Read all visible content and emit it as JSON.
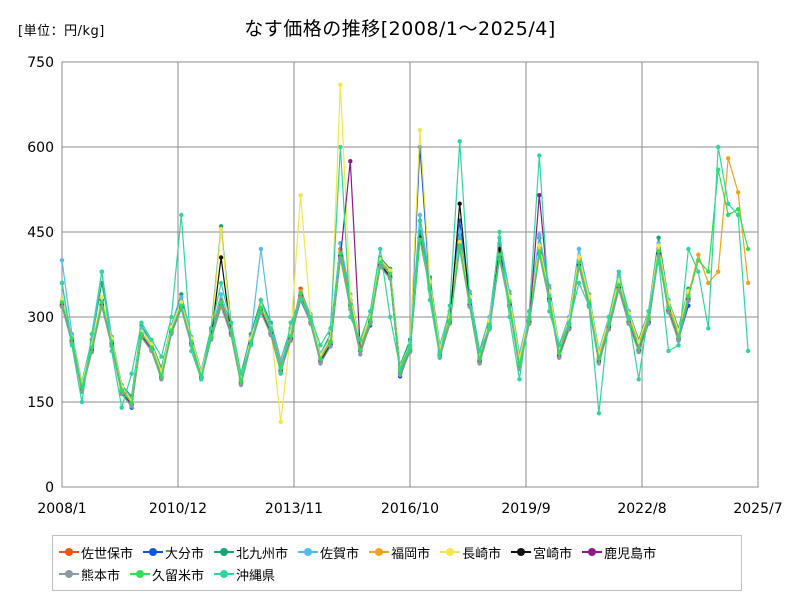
{
  "chart_data": {
    "type": "line",
    "title": "なす価格の推移[2008/1～2025/4]",
    "unit_label": "[単位：円/kg]",
    "xlabel": "",
    "ylabel": "",
    "ylim": [
      0,
      750
    ],
    "yticks": [
      "0",
      "150",
      "300",
      "450",
      "600",
      "750"
    ],
    "xlim": [
      "2008/1",
      "2025/7"
    ],
    "xticks": [
      "2008/1",
      "2010/12",
      "2013/11",
      "2016/10",
      "2019/9",
      "2022/8",
      "2025/7"
    ],
    "grid": true,
    "legend_position": "bottom",
    "x": [
      "2008/1",
      "2008/4",
      "2008/7",
      "2008/10",
      "2009/1",
      "2009/4",
      "2009/7",
      "2009/10",
      "2010/1",
      "2010/4",
      "2010/7",
      "2010/10",
      "2011/1",
      "2011/4",
      "2011/7",
      "2011/10",
      "2012/1",
      "2012/4",
      "2012/7",
      "2012/10",
      "2013/1",
      "2013/4",
      "2013/7",
      "2013/10",
      "2014/1",
      "2014/4",
      "2014/7",
      "2014/10",
      "2015/1",
      "2015/4",
      "2015/7",
      "2015/10",
      "2016/1",
      "2016/4",
      "2016/7",
      "2016/10",
      "2017/1",
      "2017/4",
      "2017/7",
      "2017/10",
      "2018/1",
      "2018/4",
      "2018/7",
      "2018/10",
      "2019/1",
      "2019/4",
      "2019/7",
      "2019/10",
      "2020/1",
      "2020/4",
      "2020/7",
      "2020/10",
      "2021/1",
      "2021/4",
      "2021/7",
      "2021/10",
      "2022/1",
      "2022/4",
      "2022/7",
      "2022/10",
      "2023/1",
      "2023/4",
      "2023/7",
      "2023/10",
      "2024/1",
      "2024/4",
      "2024/7",
      "2024/10",
      "2025/1",
      "2025/4"
    ],
    "series": [
      {
        "name": "佐世保市",
        "color": "#ee5511",
        "values": [
          330,
          265,
          180,
          250,
          320,
          260,
          175,
          150,
          270,
          250,
          200,
          280,
          320,
          260,
          200,
          270,
          330,
          280,
          190,
          260,
          320,
          280,
          215,
          270,
          350,
          300,
          230,
          260,
          420,
          330,
          250,
          300,
          400,
          380,
          210,
          250,
          470,
          360,
          240,
          300,
          430,
          330,
          230,
          290,
          410,
          330,
          220,
          300,
          420,
          340,
          240,
          290,
          400,
          330,
          230,
          290,
          360,
          300,
          250,
          300,
          420,
          320,
          270,
          340,
          null,
          null,
          null,
          null,
          null,
          null
        ]
      },
      {
        "name": "大分市",
        "color": "#1155dd",
        "values": [
          320,
          260,
          175,
          245,
          330,
          255,
          170,
          140,
          275,
          245,
          195,
          275,
          325,
          255,
          195,
          265,
          320,
          275,
          185,
          255,
          315,
          270,
          205,
          265,
          330,
          290,
          225,
          255,
          410,
          320,
          240,
          285,
          395,
          370,
          195,
          240,
          600,
          350,
          235,
          290,
          470,
          330,
          225,
          285,
          425,
          320,
          215,
          290,
          420,
          335,
          230,
          280,
          390,
          320,
          225,
          280,
          350,
          290,
          240,
          290,
          410,
          310,
          260,
          320,
          null,
          null,
          null,
          null,
          null,
          null
        ]
      },
      {
        "name": "北九州市",
        "color": "#1aa673",
        "values": [
          360,
          255,
          185,
          260,
          360,
          265,
          180,
          160,
          285,
          255,
          210,
          285,
          340,
          265,
          205,
          280,
          460,
          290,
          200,
          270,
          330,
          290,
          225,
          280,
          340,
          300,
          235,
          270,
          430,
          340,
          255,
          300,
          405,
          385,
          215,
          260,
          450,
          370,
          250,
          310,
          440,
          340,
          240,
          300,
          430,
          340,
          230,
          310,
          440,
          350,
          250,
          300,
          420,
          340,
          240,
          300,
          370,
          310,
          260,
          310,
          440,
          330,
          280,
          350,
          null,
          null,
          null,
          null,
          null,
          null
        ]
      },
      {
        "name": "佐賀市",
        "color": "#55bbee",
        "values": [
          400,
          270,
          185,
          255,
          380,
          265,
          180,
          155,
          280,
          255,
          205,
          285,
          335,
          265,
          205,
          275,
          340,
          285,
          195,
          265,
          420,
          285,
          225,
          275,
          345,
          305,
          235,
          265,
          430,
          340,
          255,
          295,
          390,
          380,
          210,
          255,
          480,
          365,
          250,
          310,
          450,
          345,
          235,
          300,
          440,
          345,
          235,
          310,
          445,
          355,
          250,
          300,
          420,
          340,
          240,
          300,
          375,
          310,
          255,
          310,
          430,
          330,
          275,
          345,
          null,
          null,
          null,
          null,
          null,
          null
        ]
      },
      {
        "name": "福岡市",
        "color": "#f0a21e",
        "values": [
          325,
          262,
          178,
          248,
          325,
          258,
          172,
          148,
          272,
          248,
          198,
          278,
          322,
          258,
          198,
          268,
          325,
          278,
          188,
          258,
          318,
          278,
          212,
          268,
          345,
          296,
          228,
          258,
          415,
          326,
          246,
          296,
          398,
          378,
          206,
          246,
          440,
          356,
          238,
          296,
          428,
          328,
          228,
          288,
          412,
          328,
          218,
          298,
          418,
          338,
          238,
          288,
          398,
          328,
          228,
          288,
          358,
          298,
          248,
          298,
          418,
          318,
          268,
          338,
          410,
          360,
          380,
          580,
          520,
          360
        ]
      },
      {
        "name": "長崎市",
        "color": "#f2e64a",
        "values": [
          330,
          264,
          182,
          252,
          335,
          262,
          177,
          152,
          274,
          252,
          204,
          282,
          326,
          262,
          202,
          272,
          455,
          282,
          192,
          262,
          322,
          282,
          115,
          272,
          515,
          302,
          232,
          262,
          710,
          336,
          252,
          302,
          402,
          382,
          212,
          252,
          630,
          362,
          244,
          304,
          432,
          336,
          232,
          294,
          420,
          336,
          226,
          306,
          426,
          346,
          246,
          296,
          406,
          336,
          236,
          296,
          366,
          306,
          256,
          306,
          426,
          326,
          276,
          346,
          null,
          null,
          null,
          null,
          null,
          null
        ]
      },
      {
        "name": "宮崎市",
        "color": "#111111",
        "values": [
          322,
          258,
          172,
          242,
          322,
          254,
          170,
          146,
          268,
          244,
          194,
          274,
          318,
          254,
          194,
          264,
          405,
          272,
          184,
          254,
          312,
          272,
          206,
          262,
          338,
          292,
          222,
          252,
          408,
          322,
          242,
          292,
          392,
          372,
          202,
          242,
          440,
          352,
          232,
          292,
          500,
          322,
          222,
          282,
          420,
          322,
          212,
          292,
          412,
          332,
          232,
          282,
          392,
          322,
          222,
          282,
          352,
          292,
          242,
          292,
          412,
          312,
          262,
          332,
          null,
          null,
          null,
          null,
          null,
          null
        ]
      },
      {
        "name": "鹿児島市",
        "color": "#8b1a8b",
        "values": [
          320,
          256,
          170,
          240,
          320,
          250,
          165,
          144,
          266,
          242,
          192,
          272,
          316,
          252,
          192,
          262,
          320,
          270,
          182,
          252,
          310,
          270,
          204,
          260,
          336,
          290,
          220,
          250,
          406,
          575,
          240,
          290,
          390,
          370,
          200,
          240,
          438,
          350,
          230,
          290,
          426,
          320,
          220,
          280,
          404,
          320,
          210,
          290,
          515,
          330,
          230,
          280,
          390,
          320,
          220,
          280,
          350,
          290,
          240,
          290,
          410,
          310,
          260,
          330,
          null,
          null,
          null,
          null,
          null,
          null
        ]
      },
      {
        "name": "熊本市",
        "color": "#889aa8",
        "values": [
          318,
          254,
          168,
          238,
          318,
          248,
          164,
          142,
          264,
          240,
          190,
          270,
          314,
          250,
          190,
          260,
          318,
          268,
          180,
          250,
          308,
          268,
          202,
          258,
          334,
          288,
          218,
          248,
          404,
          314,
          234,
          288,
          388,
          368,
          198,
          238,
          436,
          348,
          228,
          288,
          420,
          318,
          218,
          278,
          402,
          318,
          208,
          288,
          410,
          328,
          228,
          278,
          388,
          318,
          218,
          278,
          348,
          288,
          238,
          288,
          408,
          308,
          258,
          328,
          null,
          null,
          null,
          null,
          null,
          null
        ]
      },
      {
        "name": "久留米市",
        "color": "#33dd55",
        "values": [
          326,
          262,
          176,
          246,
          326,
          256,
          170,
          148,
          270,
          246,
          196,
          276,
          320,
          256,
          196,
          266,
          326,
          276,
          186,
          256,
          316,
          276,
          210,
          266,
          342,
          294,
          226,
          256,
          412,
          322,
          242,
          294,
          396,
          376,
          204,
          244,
          436,
          354,
          236,
          294,
          426,
          326,
          226,
          286,
          410,
          326,
          216,
          296,
          416,
          336,
          236,
          286,
          396,
          326,
          226,
          286,
          356,
          296,
          246,
          296,
          416,
          316,
          266,
          336,
          400,
          380,
          560,
          480,
          490,
          420
        ]
      },
      {
        "name": "沖縄県",
        "color": "#2fd69a",
        "values": [
          360,
          250,
          150,
          270,
          380,
          240,
          140,
          200,
          290,
          260,
          230,
          300,
          480,
          240,
          190,
          280,
          360,
          290,
          200,
          250,
          330,
          280,
          200,
          290,
          330,
          300,
          250,
          280,
          600,
          300,
          260,
          310,
          420,
          300,
          210,
          250,
          470,
          330,
          230,
          320,
          610,
          330,
          240,
          280,
          450,
          300,
          190,
          310,
          585,
          310,
          250,
          290,
          360,
          320,
          130,
          300,
          380,
          300,
          190,
          310,
          400,
          240,
          250,
          420,
          380,
          280,
          600,
          500,
          480,
          240
        ]
      }
    ]
  }
}
